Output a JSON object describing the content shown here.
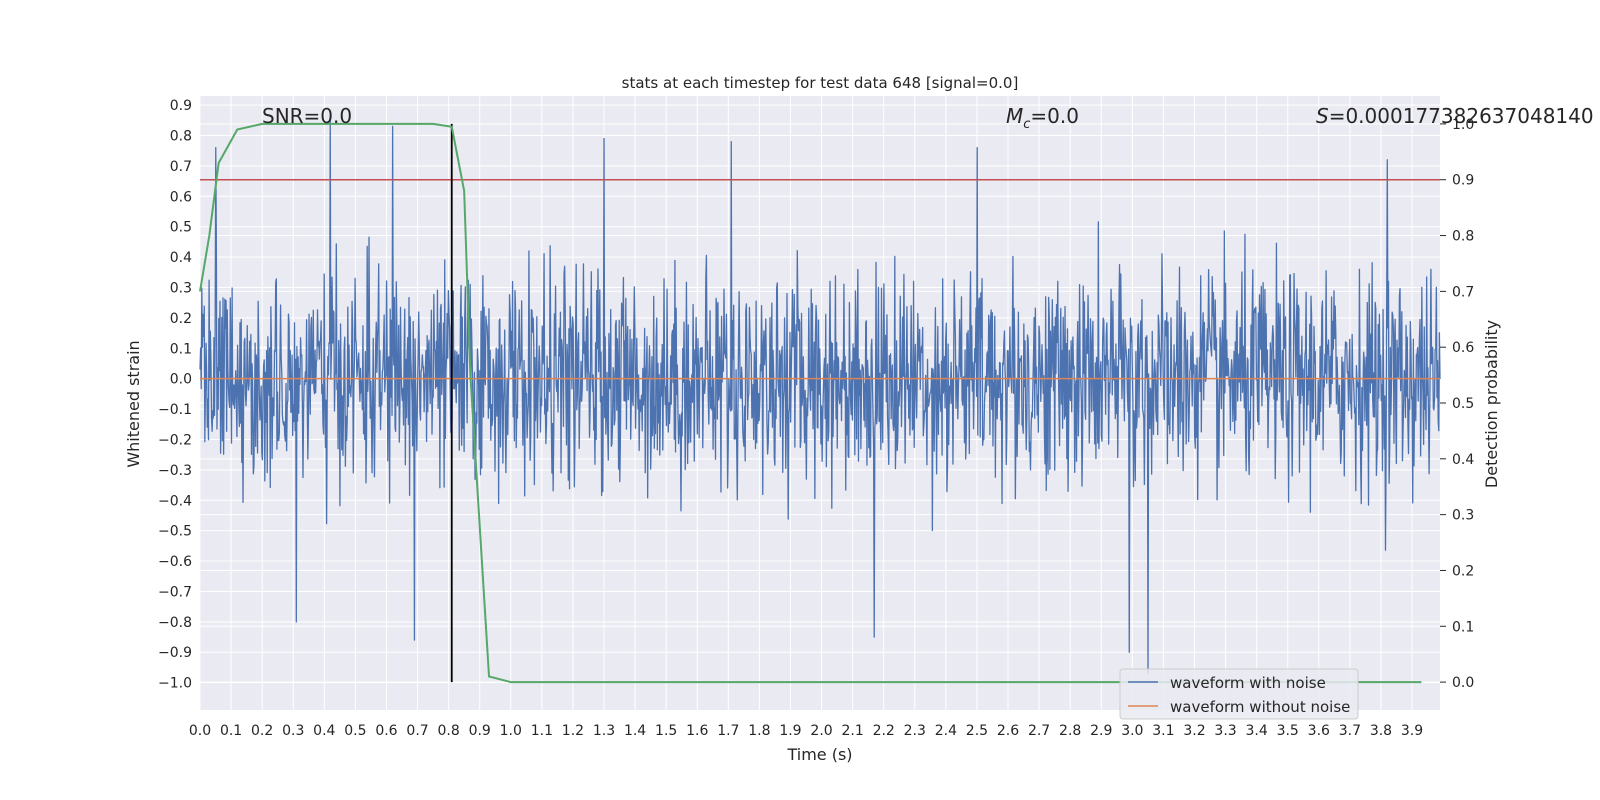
{
  "chart_data": {
    "type": "line",
    "title": "stats at each timestep for test data 648 [signal=0.0]",
    "xlabel": "Time (s)",
    "ylabel": "Whitened strain",
    "y2label": "Detection probability",
    "xlim": [
      0.0,
      3.99
    ],
    "ylim": [
      -1.09,
      0.93
    ],
    "y2lim": [
      -0.05,
      1.05
    ],
    "x_ticks": [
      0.0,
      0.1,
      0.2,
      0.3,
      0.4,
      0.5,
      0.6,
      0.7,
      0.8,
      0.9,
      1.0,
      1.1,
      1.2,
      1.3,
      1.4,
      1.5,
      1.6,
      1.7,
      1.8,
      1.9,
      2.0,
      2.1,
      2.2,
      2.3,
      2.4,
      2.5,
      2.6,
      2.7,
      2.8,
      2.9,
      3.0,
      3.1,
      3.2,
      3.3,
      3.4,
      3.5,
      3.6,
      3.7,
      3.8,
      3.9
    ],
    "y_ticks": [
      0.9,
      0.8,
      0.7,
      0.6,
      0.5,
      0.4,
      0.3,
      0.2,
      0.1,
      0.0,
      -0.1,
      -0.2,
      -0.3,
      -0.4,
      -0.5,
      -0.6,
      -0.7,
      -0.8,
      -0.9,
      -1.0
    ],
    "y2_ticks": [
      0.0,
      0.1,
      0.2,
      0.3,
      0.4,
      0.5,
      0.6,
      0.7,
      0.8,
      0.9,
      1.0
    ],
    "grid": true,
    "legend_position": "lower-right",
    "annotations": {
      "snr": "SNR=0.0",
      "mc_symbol": "M",
      "mc_sub": "c",
      "mc_value": "=0.0",
      "s_symbol": "S",
      "s_value": "=0.00017738263704814",
      "s_tail": "0"
    },
    "series": [
      {
        "name": "waveform with noise",
        "color": "#4c72b0",
        "axis": "left",
        "kind": "noise",
        "t_start": 0.0,
        "t_end": 3.99,
        "samples": 2048,
        "sigma": 0.17,
        "peaks": [
          [
            0.05,
            0.76
          ],
          [
            0.62,
            0.83
          ],
          [
            1.3,
            0.79
          ],
          [
            1.71,
            0.78
          ],
          [
            2.5,
            0.76
          ],
          [
            3.05,
            -0.97
          ],
          [
            0.31,
            -0.8
          ],
          [
            0.42,
            0.86
          ],
          [
            0.69,
            -0.86
          ],
          [
            2.17,
            -0.85
          ],
          [
            2.99,
            -0.9
          ],
          [
            3.82,
            0.72
          ]
        ]
      },
      {
        "name": "waveform without noise",
        "color": "#dd8452",
        "axis": "left",
        "kind": "constant",
        "value": 0.0
      },
      {
        "name": "detection probability",
        "color": "#55a868",
        "axis": "right",
        "kind": "line",
        "x": [
          0.0,
          0.03,
          0.06,
          0.12,
          0.2,
          0.3,
          0.5,
          0.75,
          0.81,
          0.85,
          0.87,
          0.93,
          1.0,
          1.5,
          2.0,
          3.0,
          3.93
        ],
        "y": [
          0.7,
          0.8,
          0.93,
          0.99,
          1.0,
          1.0,
          1.0,
          1.0,
          0.995,
          0.88,
          0.55,
          0.01,
          0.0,
          0.0,
          0.0,
          0.0,
          0.0
        ]
      }
    ],
    "threshold": {
      "value": 0.9,
      "axis": "right",
      "color": "#c44e52"
    },
    "marker_line": {
      "x": 0.81,
      "color": "#000000"
    }
  }
}
